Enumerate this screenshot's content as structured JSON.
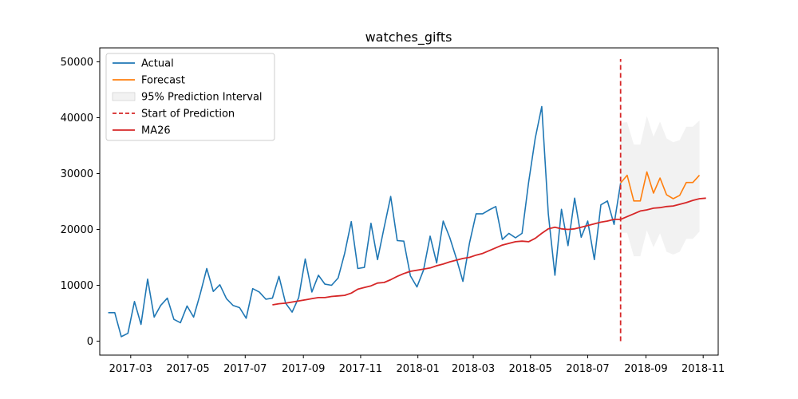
{
  "chart_data": {
    "type": "line",
    "title": "watches_gifts",
    "xlabel": "",
    "ylabel": "",
    "x_range": [
      "2017-01-27",
      "2018-11-17"
    ],
    "y_range": [
      -2500,
      52500
    ],
    "y_ticks": [
      0,
      10000,
      20000,
      30000,
      40000,
      50000
    ],
    "x_ticks": [
      {
        "date": "2017-03-01",
        "label": "2017-03"
      },
      {
        "date": "2017-05-01",
        "label": "2017-05"
      },
      {
        "date": "2017-07-01",
        "label": "2017-07"
      },
      {
        "date": "2017-09-01",
        "label": "2017-09"
      },
      {
        "date": "2017-11-01",
        "label": "2017-11"
      },
      {
        "date": "2018-01-01",
        "label": "2018-01"
      },
      {
        "date": "2018-03-01",
        "label": "2018-03"
      },
      {
        "date": "2018-05-01",
        "label": "2018-05"
      },
      {
        "date": "2018-07-01",
        "label": "2018-07"
      },
      {
        "date": "2018-09-01",
        "label": "2018-09"
      },
      {
        "date": "2018-11-01",
        "label": "2018-11"
      }
    ],
    "grid": false,
    "legend_position": "top-left",
    "legend": [
      {
        "label": "Actual",
        "kind": "line",
        "color": "#1f77b4"
      },
      {
        "label": "Forecast",
        "kind": "line",
        "color": "#ff7f0e"
      },
      {
        "label": "95% Prediction Interval",
        "kind": "patch",
        "color": "#d3d3d3"
      },
      {
        "label": "Start of Prediction",
        "kind": "dashed",
        "color": "#d62728"
      },
      {
        "label": "MA26",
        "kind": "line",
        "color": "#d62728"
      }
    ],
    "actual": {
      "start": "2017-02-05",
      "step_days": 7,
      "color": "#1f77b4",
      "values": [
        5100,
        5100,
        800,
        1400,
        7100,
        3000,
        11100,
        4300,
        6400,
        7700,
        3900,
        3300,
        6300,
        4300,
        8400,
        13000,
        8900,
        10100,
        7600,
        6400,
        6000,
        4100,
        9400,
        8800,
        7500,
        7700,
        11600,
        6800,
        5200,
        7800,
        14700,
        8800,
        11800,
        10200,
        10000,
        11300,
        15700,
        21400,
        13000,
        13200,
        21100,
        14600,
        20300,
        25900,
        18000,
        17900,
        11700,
        9700,
        12700,
        18800,
        14000,
        21500,
        18500,
        14800,
        10700,
        17600,
        22800,
        22800,
        23500,
        24100,
        18200,
        19300,
        18500,
        19300,
        28400,
        36300,
        42000,
        22800,
        11800,
        23600,
        17100,
        25600,
        18600,
        21500,
        14600,
        24400,
        25100,
        20900,
        28300
      ]
    },
    "forecast": {
      "start": "2018-08-05",
      "step_days": 7,
      "color": "#ff7f0e",
      "values": [
        28300,
        29700,
        25100,
        25100,
        30300,
        26500,
        29200,
        26200,
        25500,
        26100,
        28400,
        28400,
        29700
      ],
      "lower": [
        19400,
        19400,
        15200,
        15200,
        19800,
        16800,
        19300,
        16000,
        15500,
        16000,
        18300,
        18300,
        19600
      ],
      "upper": [
        39100,
        39200,
        35200,
        35200,
        40300,
        36600,
        39300,
        36300,
        35600,
        36000,
        38400,
        38400,
        39500
      ]
    },
    "prediction_start": {
      "date": "2018-08-05",
      "y_from": 0,
      "y_to": 50500,
      "color": "#d62728"
    },
    "ma26": {
      "start": "2017-07-30",
      "step_days": 7,
      "color": "#d62728",
      "values": [
        6500,
        6700,
        6800,
        7000,
        7200,
        7400,
        7600,
        7800,
        7800,
        8000,
        8100,
        8200,
        8600,
        9300,
        9600,
        9900,
        10400,
        10500,
        11000,
        11600,
        12100,
        12500,
        12700,
        12900,
        13100,
        13500,
        13800,
        14200,
        14500,
        14800,
        15000,
        15400,
        15700,
        16200,
        16700,
        17200,
        17500,
        17800,
        17900,
        17800,
        18400,
        19300,
        20100,
        20400,
        20100,
        20000,
        20100,
        20400,
        20700,
        21000,
        21300,
        21500,
        21800,
        21800,
        22300,
        22800,
        23300,
        23500,
        23800,
        23900,
        24100,
        24200,
        24500,
        24800,
        25200,
        25500,
        25600
      ]
    }
  }
}
